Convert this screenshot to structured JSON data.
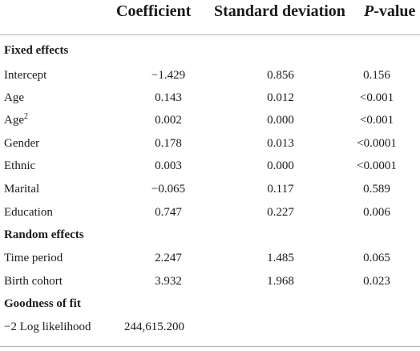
{
  "header": {
    "coefficient": "Coefficient",
    "std_dev": "Standard deviation",
    "p_italic": "P",
    "p_rest": "-value"
  },
  "sections": {
    "fixed": "Fixed effects",
    "random": "Random effects",
    "fit": "Goodness of fit"
  },
  "rows": {
    "intercept": {
      "label": "Intercept",
      "coef": "−1.429",
      "sd": "0.856",
      "p": "0.156"
    },
    "age": {
      "label": "Age",
      "coef": "0.143",
      "sd": "0.012",
      "p": "<0.001"
    },
    "age2": {
      "label": "Age",
      "sup": "2",
      "coef": "0.002",
      "sd": "0.000",
      "p": "<0.001"
    },
    "gender": {
      "label": "Gender",
      "coef": "0.178",
      "sd": "0.013",
      "p": "<0.0001"
    },
    "ethnic": {
      "label": "Ethnic",
      "coef": "0.003",
      "sd": "0.000",
      "p": "<0.0001"
    },
    "marital": {
      "label": "Marital",
      "coef": "−0.065",
      "sd": "0.117",
      "p": "0.589"
    },
    "education": {
      "label": "Education",
      "coef": "0.747",
      "sd": "0.227",
      "p": "0.006"
    },
    "time_period": {
      "label": "Time period",
      "coef": "2.247",
      "sd": "1.485",
      "p": "0.065"
    },
    "birth_cohort": {
      "label": "Birth cohort",
      "coef": "3.932",
      "sd": "1.968",
      "p": "0.023"
    },
    "loglik": {
      "label": "−2 Log likelihood",
      "coef": "244,615.200"
    }
  }
}
